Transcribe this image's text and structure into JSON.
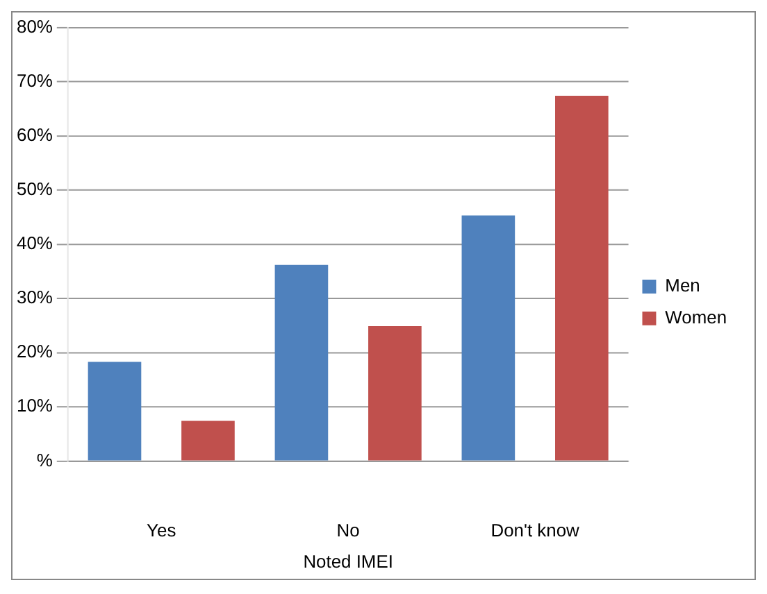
{
  "chart_data": {
    "type": "bar",
    "xlabel": "Noted IMEI",
    "categories": [
      "Yes",
      "No",
      "Don't know"
    ],
    "series": [
      {
        "name": "Men",
        "color": "#4f81bd",
        "values": [
          18.3,
          36.2,
          45.3
        ]
      },
      {
        "name": "Women",
        "color": "#c0504d",
        "values": [
          7.4,
          24.9,
          67.4
        ]
      }
    ],
    "ylim": [
      0,
      80
    ],
    "yticks": [
      {
        "value": 0,
        "label": "%"
      },
      {
        "value": 10,
        "label": "10%"
      },
      {
        "value": 20,
        "label": "20%"
      },
      {
        "value": 30,
        "label": "30%"
      },
      {
        "value": 40,
        "label": "40%"
      },
      {
        "value": 50,
        "label": "50%"
      },
      {
        "value": 60,
        "label": "60%"
      },
      {
        "value": 70,
        "label": "70%"
      },
      {
        "value": 80,
        "label": "80%"
      }
    ],
    "grid": "y",
    "legend": "right"
  }
}
